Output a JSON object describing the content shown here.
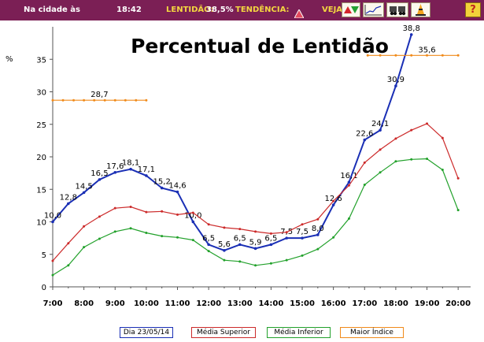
{
  "topbar": {
    "city_label": "Na cidade às",
    "time": "18:42",
    "slowness_label": "LENTIDÃO:",
    "slowness_value": "38,5%",
    "trend_label": "TENDÊNCIA:",
    "trend_icon": "triangle-up-icon",
    "see_label": "VEJA :",
    "buttons": [
      "up-down-arrows-icon",
      "line-chart-icon",
      "vehicles-icon",
      "traffic-cone-icon"
    ],
    "help_label": "?",
    "background_color": "#7b1f55",
    "label_color": "#f3d640"
  },
  "chart_data": {
    "type": "line",
    "title": "Percentual de Lentidão",
    "ylabel": "%",
    "xlabel": "",
    "ylim": [
      0,
      40
    ],
    "yticks": [
      0,
      5,
      10,
      15,
      20,
      25,
      30,
      35
    ],
    "xtick_labels": [
      "7:00",
      "8:00",
      "9:00",
      "10:00",
      "11:00",
      "12:00",
      "13:00",
      "14:00",
      "15:00",
      "16:00",
      "17:00",
      "18:00",
      "19:00",
      "20:00"
    ],
    "grid": false,
    "legend_position": "bottom",
    "series": [
      {
        "name": "Dia 23/05/14",
        "color": "#1a2fb5",
        "x": [
          7.0,
          7.5,
          8.0,
          8.5,
          9.0,
          9.5,
          10.0,
          10.5,
          11.0,
          11.5,
          12.0,
          12.5,
          13.0,
          13.5,
          14.0,
          14.5,
          15.0,
          15.5,
          16.0,
          16.5,
          17.0,
          17.5,
          18.0,
          18.5
        ],
        "values": [
          10.0,
          12.8,
          14.5,
          16.5,
          17.6,
          18.1,
          17.1,
          15.2,
          14.6,
          10.0,
          6.5,
          5.6,
          6.5,
          5.9,
          6.5,
          7.5,
          7.5,
          8.0,
          12.6,
          16.1,
          22.6,
          24.1,
          30.9,
          38.8
        ],
        "labels": [
          "10,0",
          "12,8",
          "14,5",
          "16,5",
          "17,6",
          "18,1",
          "17,1",
          "15,2",
          "14,6",
          "10,0",
          "6,5",
          "5,6",
          "6,5",
          "5,9",
          "6,5",
          "7,5",
          "7,5",
          "8,0",
          "12,6",
          "16,1",
          "22,6",
          "24,1",
          "30,9",
          "38,8"
        ]
      },
      {
        "name": "Média Superior",
        "color": "#cc2a2a",
        "x": [
          7.0,
          7.5,
          8.0,
          8.5,
          9.0,
          9.5,
          10.0,
          10.5,
          11.0,
          11.5,
          12.0,
          12.5,
          13.0,
          13.5,
          14.0,
          14.5,
          15.0,
          15.5,
          16.0,
          16.5,
          17.0,
          17.5,
          18.0,
          18.5,
          19.0,
          19.5,
          20.0
        ],
        "values": [
          4.0,
          6.7,
          9.3,
          10.8,
          12.1,
          12.3,
          11.5,
          11.6,
          11.1,
          11.4,
          9.6,
          9.1,
          8.9,
          8.5,
          8.2,
          8.4,
          9.6,
          10.4,
          13.2,
          15.6,
          19.1,
          21.1,
          22.8,
          24.1,
          25.1,
          22.9,
          16.7
        ]
      },
      {
        "name": "Média Inferior",
        "color": "#22a12b",
        "x": [
          7.0,
          7.5,
          8.0,
          8.5,
          9.0,
          9.5,
          10.0,
          10.5,
          11.0,
          11.5,
          12.0,
          12.5,
          13.0,
          13.5,
          14.0,
          14.5,
          15.0,
          15.5,
          16.0,
          16.5,
          17.0,
          17.5,
          18.0,
          18.5,
          19.0,
          19.5,
          20.0
        ],
        "values": [
          1.8,
          3.3,
          6.1,
          7.4,
          8.5,
          9.0,
          8.3,
          7.8,
          7.6,
          7.2,
          5.5,
          4.1,
          3.9,
          3.3,
          3.6,
          4.1,
          4.8,
          5.8,
          7.6,
          10.5,
          15.7,
          17.6,
          19.3,
          19.6,
          19.7,
          18.0,
          11.8
        ]
      },
      {
        "name": "Maior Índice",
        "color": "#f08a1a",
        "segments": [
          {
            "x": [
              7.0,
              7.33,
              7.67,
              8.0,
              8.33,
              8.67,
              9.0,
              9.33,
              9.67,
              10.0
            ],
            "values": [
              28.7,
              28.7,
              28.7,
              28.7,
              28.7,
              28.7,
              28.7,
              28.7,
              28.7,
              28.7
            ],
            "label": "28,7",
            "label_x": 8.5
          },
          {
            "x": [
              17.1,
              17.5,
              18.0,
              18.5,
              19.0,
              19.5,
              20.0
            ],
            "values": [
              35.6,
              35.6,
              35.6,
              35.6,
              35.6,
              35.6,
              35.6
            ],
            "label": "35,6",
            "label_x": 19.0
          }
        ]
      }
    ]
  }
}
